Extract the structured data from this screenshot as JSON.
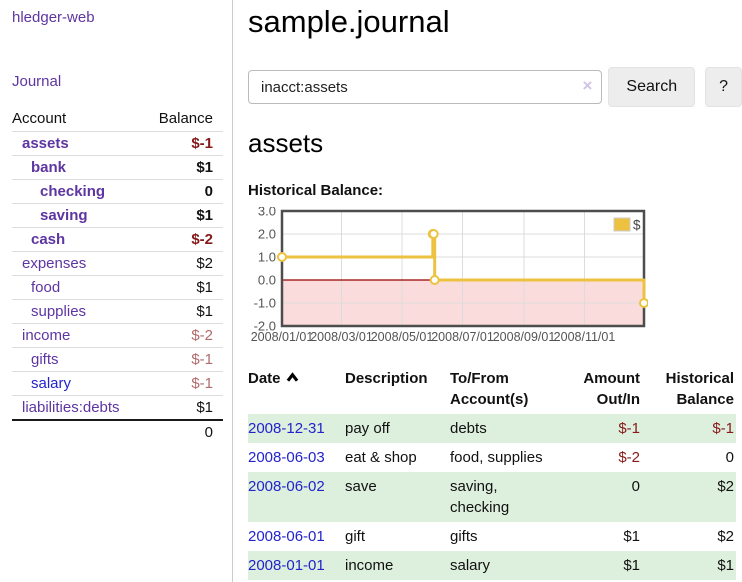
{
  "colors": {
    "purple_link": "#5e35a1",
    "blue_link": "#2323cc",
    "neg_strong": "#861919",
    "neg_muted": "#b26b6b",
    "stripe_green": "#ddefdd",
    "series_gold": "#EDC240",
    "negative_region_pink": "#fbdcdc",
    "zero_line_red": "#990000"
  },
  "sidebar": {
    "brand": "hledger-web",
    "nav_journal": "Journal",
    "accounts_table": {
      "headers": {
        "account": "Account",
        "balance": "Balance"
      },
      "rows": [
        {
          "account": "assets",
          "balance": "$-1",
          "level": 1,
          "bold": true,
          "balance_class": "bal-neg-strong",
          "link": "purple"
        },
        {
          "account": "bank",
          "balance": "$1",
          "level": 2,
          "bold": true,
          "balance_class": "bal-black",
          "link": "purple"
        },
        {
          "account": "checking",
          "balance": "0",
          "level": 3,
          "bold": true,
          "balance_class": "bal-black",
          "link": "purple"
        },
        {
          "account": "saving",
          "balance": "$1",
          "level": 3,
          "bold": true,
          "balance_class": "bal-black",
          "link": "purple"
        },
        {
          "account": "cash",
          "balance": "$-2",
          "level": 2,
          "bold": true,
          "balance_class": "bal-neg-strong",
          "link": "purple"
        },
        {
          "account": "expenses",
          "balance": "$2",
          "level": 1,
          "bold": false,
          "balance_class": "bal-black",
          "link": "purple"
        },
        {
          "account": "food",
          "balance": "$1",
          "level": 2,
          "bold": false,
          "balance_class": "bal-black",
          "link": "purple"
        },
        {
          "account": "supplies",
          "balance": "$1",
          "level": 2,
          "bold": false,
          "balance_class": "bal-black",
          "link": "purple"
        },
        {
          "account": "income",
          "balance": "$-2",
          "level": 1,
          "bold": false,
          "balance_class": "bal-neg-muted",
          "link": "purple"
        },
        {
          "account": "gifts",
          "balance": "$-1",
          "level": 2,
          "bold": false,
          "balance_class": "bal-neg-muted",
          "link": "purple"
        },
        {
          "account": "salary",
          "balance": "$-1",
          "level": 2,
          "bold": false,
          "balance_class": "bal-neg-muted",
          "link": "blue"
        },
        {
          "account": "liabilities:debts",
          "balance": "$1",
          "level": 1,
          "bold": false,
          "balance_class": "bal-black",
          "link": "purple"
        }
      ],
      "total": "0"
    }
  },
  "main": {
    "title": "sample.journal",
    "search": {
      "value": "inacct:assets",
      "clear_icon": "×",
      "button_label": "Search",
      "help_label": "?"
    },
    "account_heading": "assets",
    "chart_label": "Historical Balance:"
  },
  "chart_data": {
    "type": "line",
    "step": true,
    "title": "Historical Balance:",
    "series": [
      {
        "name": "$",
        "color": "#EDC240",
        "points": [
          [
            "2008-01-01",
            1
          ],
          [
            "2008-06-01",
            2
          ],
          [
            "2008-06-02",
            2
          ],
          [
            "2008-06-03",
            0
          ],
          [
            "2008-12-31",
            -1
          ]
        ]
      }
    ],
    "xlim": [
      "2008-01-01",
      "2008-12-31"
    ],
    "ylim": [
      -2,
      3
    ],
    "yticks": [
      {
        "v": 3,
        "label": "3.0"
      },
      {
        "v": 2,
        "label": "2.0"
      },
      {
        "v": 1,
        "label": "1.0"
      },
      {
        "v": 0,
        "label": "0.0"
      },
      {
        "v": -1,
        "label": "-1.0"
      },
      {
        "v": -2,
        "label": "-2.0"
      }
    ],
    "xticks": [
      {
        "d": "2008-01-01",
        "label": "2008/01/01"
      },
      {
        "d": "2008-03-01",
        "label": "2008/03/01"
      },
      {
        "d": "2008-05-01",
        "label": "2008/05/01"
      },
      {
        "d": "2008-07-01",
        "label": "2008/07/01"
      },
      {
        "d": "2008-09-01",
        "label": "2008/09/01"
      },
      {
        "d": "2008-11-01",
        "label": "2008/11/01"
      }
    ],
    "grid": true,
    "legend": {
      "label": "$",
      "position": "top-right"
    },
    "negative_region_shaded": true
  },
  "transactions": {
    "headers": [
      "Date",
      "Description",
      "To/From Account(s)",
      "Amount Out/In",
      "Historical Balance"
    ],
    "sort_column": "Date",
    "sort_direction": "ascending",
    "rows": [
      {
        "date": "2008-12-31",
        "description": "pay off",
        "accounts": "debts",
        "amount": "$-1",
        "balance": "$-1",
        "amount_neg": true,
        "balance_neg": true
      },
      {
        "date": "2008-06-03",
        "description": "eat & shop",
        "accounts": "food, supplies",
        "amount": "$-2",
        "balance": "0",
        "amount_neg": true,
        "balance_neg": false
      },
      {
        "date": "2008-06-02",
        "description": "save",
        "accounts": "saving, checking",
        "amount": "0",
        "balance": "$2",
        "amount_neg": false,
        "balance_neg": false
      },
      {
        "date": "2008-06-01",
        "description": "gift",
        "accounts": "gifts",
        "amount": "$1",
        "balance": "$2",
        "amount_neg": false,
        "balance_neg": false
      },
      {
        "date": "2008-01-01",
        "description": "income",
        "accounts": "salary",
        "amount": "$1",
        "balance": "$1",
        "amount_neg": false,
        "balance_neg": false
      }
    ]
  }
}
